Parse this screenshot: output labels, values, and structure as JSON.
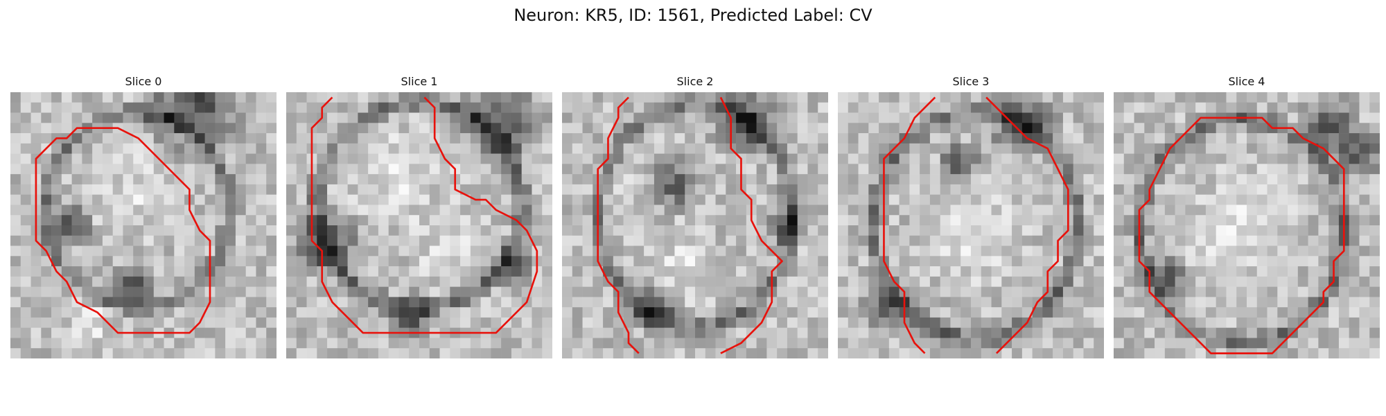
{
  "figure": {
    "title": "Neuron: KR5, ID: 1561, Predicted Label: CV"
  },
  "colors": {
    "contour": "#e8120c",
    "background": "#ffffff"
  },
  "slices": [
    {
      "title": "Slice 0",
      "contour": [
        [
          7.5,
          3.5
        ],
        [
          10.5,
          3.5
        ],
        [
          12.5,
          4.5
        ],
        [
          13.5,
          5.5
        ],
        [
          16.5,
          8.5
        ],
        [
          17.5,
          9.5
        ],
        [
          17.5,
          11.5
        ],
        [
          18.5,
          13.5
        ],
        [
          19.5,
          14.5
        ],
        [
          19.5,
          20.5
        ],
        [
          18.5,
          22.5
        ],
        [
          17.5,
          23.5
        ],
        [
          10.5,
          23.5
        ],
        [
          8.5,
          21.5
        ],
        [
          6.5,
          20.5
        ],
        [
          5.5,
          18.5
        ],
        [
          4.5,
          17.5
        ],
        [
          3.5,
          15.5
        ],
        [
          2.5,
          14.5
        ],
        [
          2.5,
          6.5
        ],
        [
          3.5,
          5.5
        ],
        [
          4.5,
          4.5
        ],
        [
          5.5,
          4.5
        ],
        [
          6.5,
          3.5
        ]
      ],
      "closed": true
    },
    {
      "title": "Slice 1",
      "contour": [
        [
          4.5,
          0.5
        ],
        [
          3.5,
          1.5
        ],
        [
          3.5,
          2.5
        ],
        [
          2.5,
          3.5
        ],
        [
          2.5,
          14.5
        ],
        [
          3.5,
          15.5
        ],
        [
          3.5,
          18.5
        ],
        [
          4.5,
          20.5
        ],
        [
          5.5,
          21.5
        ],
        [
          6.5,
          22.5
        ],
        [
          7.5,
          23.5
        ],
        [
          20.5,
          23.5
        ],
        [
          21.5,
          22.5
        ],
        [
          22.5,
          21.5
        ],
        [
          23.5,
          20.5
        ],
        [
          24.5,
          17.5
        ],
        [
          24.5,
          15.5
        ],
        [
          23.5,
          13.5
        ],
        [
          22.5,
          12.5
        ],
        [
          20.5,
          11.5
        ],
        [
          19.5,
          10.5
        ],
        [
          18.5,
          10.5
        ],
        [
          16.5,
          9.5
        ],
        [
          16.5,
          7.5
        ],
        [
          15.5,
          6.5
        ],
        [
          14.5,
          4.5
        ],
        [
          14.5,
          1.5
        ],
        [
          13.5,
          0.5
        ]
      ],
      "closed": false
    },
    {
      "title": "Slice 2",
      "contour": [
        [
          6.5,
          0.5
        ],
        [
          5.5,
          1.5
        ],
        [
          5.5,
          2.5
        ],
        [
          4.5,
          4.5
        ],
        [
          4.5,
          6.5
        ],
        [
          3.5,
          7.5
        ],
        [
          3.5,
          16.5
        ],
        [
          4.5,
          18.5
        ],
        [
          5.5,
          19.5
        ],
        [
          5.5,
          21.5
        ],
        [
          6.5,
          23.5
        ],
        [
          6.5,
          24.5
        ],
        [
          7.5,
          25.5
        ]
      ],
      "contour2": [
        [
          15.5,
          0.5
        ],
        [
          16.5,
          2.5
        ],
        [
          16.5,
          5.5
        ],
        [
          17.5,
          6.5
        ],
        [
          17.5,
          9.5
        ],
        [
          18.5,
          10.5
        ],
        [
          18.5,
          12.5
        ],
        [
          19.5,
          14.5
        ],
        [
          20.5,
          15.5
        ],
        [
          21.5,
          16.5
        ],
        [
          20.5,
          17.5
        ],
        [
          20.5,
          20.5
        ],
        [
          19.5,
          22.5
        ],
        [
          18.5,
          23.5
        ],
        [
          17.5,
          24.5
        ],
        [
          15.5,
          25.5
        ]
      ],
      "closed": false
    },
    {
      "title": "Slice 3",
      "contour": [
        [
          9.5,
          0.5
        ],
        [
          8.5,
          1.5
        ],
        [
          7.5,
          2.5
        ],
        [
          6.5,
          4.5
        ],
        [
          5.5,
          5.5
        ],
        [
          4.5,
          6.5
        ],
        [
          4.5,
          16.5
        ],
        [
          5.5,
          18.5
        ],
        [
          6.5,
          19.5
        ],
        [
          6.5,
          22.5
        ],
        [
          7.5,
          24.5
        ],
        [
          8.5,
          25.5
        ]
      ],
      "contour2": [
        [
          14.5,
          0.5
        ],
        [
          15.5,
          1.5
        ],
        [
          16.5,
          2.5
        ],
        [
          17.5,
          3.5
        ],
        [
          18.5,
          4.5
        ],
        [
          20.5,
          5.5
        ],
        [
          21.5,
          7.5
        ],
        [
          22.5,
          9.5
        ],
        [
          22.5,
          13.5
        ],
        [
          21.5,
          14.5
        ],
        [
          21.5,
          16.5
        ],
        [
          20.5,
          17.5
        ],
        [
          20.5,
          19.5
        ],
        [
          19.5,
          20.5
        ],
        [
          18.5,
          22.5
        ],
        [
          17.5,
          23.5
        ],
        [
          16.5,
          24.5
        ],
        [
          15.5,
          25.5
        ]
      ],
      "closed": false
    },
    {
      "title": "Slice 4",
      "contour": [
        [
          8.5,
          2.5
        ],
        [
          14.5,
          2.5
        ],
        [
          15.5,
          3.5
        ],
        [
          17.5,
          3.5
        ],
        [
          18.5,
          4.5
        ],
        [
          20.5,
          5.5
        ],
        [
          21.5,
          6.5
        ],
        [
          22.5,
          7.5
        ],
        [
          22.5,
          9.5
        ],
        [
          22.5,
          15.5
        ],
        [
          21.5,
          16.5
        ],
        [
          21.5,
          18.5
        ],
        [
          20.5,
          19.5
        ],
        [
          20.5,
          20.5
        ],
        [
          19.5,
          21.5
        ],
        [
          18.5,
          22.5
        ],
        [
          16.5,
          24.5
        ],
        [
          15.5,
          25.5
        ],
        [
          11.5,
          25.5
        ],
        [
          9.5,
          25.5
        ],
        [
          8.5,
          24.5
        ],
        [
          7.5,
          23.5
        ],
        [
          6.5,
          22.5
        ],
        [
          5.5,
          21.5
        ],
        [
          4.5,
          20.5
        ],
        [
          3.5,
          19.5
        ],
        [
          3.5,
          17.5
        ],
        [
          2.5,
          16.5
        ],
        [
          2.5,
          11.5
        ],
        [
          3.5,
          10.5
        ],
        [
          3.5,
          9.5
        ],
        [
          4.5,
          7.5
        ],
        [
          5.5,
          5.5
        ],
        [
          6.5,
          4.5
        ],
        [
          7.5,
          3.5
        ]
      ],
      "closed": true
    }
  ]
}
